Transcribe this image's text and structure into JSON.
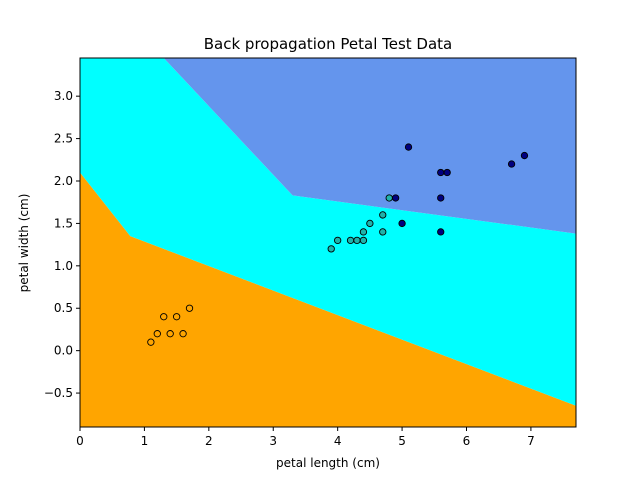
{
  "chart_data": {
    "type": "scatter",
    "title": "Back propagation Petal Test Data",
    "xlabel": "petal length (cm)",
    "ylabel": "petal width (cm)",
    "xlim": [
      0,
      7.7
    ],
    "ylim": [
      -0.9,
      3.45
    ],
    "xticks": [
      0,
      1,
      2,
      3,
      4,
      5,
      6,
      7
    ],
    "yticks": [
      -0.5,
      0.0,
      0.5,
      1.0,
      1.5,
      2.0,
      2.5,
      3.0
    ],
    "ytick_labels": [
      "−0.5",
      "0.0",
      "0.5",
      "1.0",
      "1.5",
      "2.0",
      "2.5",
      "3.0"
    ],
    "grid": false,
    "regions": [
      {
        "color": "#FFA500",
        "polygon": [
          [
            0,
            2.1
          ],
          [
            0.78,
            1.35
          ],
          [
            7.7,
            -0.65
          ],
          [
            7.7,
            -0.9
          ],
          [
            0,
            -0.9
          ]
        ]
      },
      {
        "color": "#00FFFF",
        "polygon": [
          [
            0,
            3.45
          ],
          [
            1.3,
            3.45
          ],
          [
            3.3,
            1.83
          ],
          [
            7.7,
            1.38
          ],
          [
            7.7,
            -0.65
          ],
          [
            0.78,
            1.35
          ],
          [
            0,
            2.1
          ]
        ]
      },
      {
        "color": "#6495ED",
        "polygon": [
          [
            1.3,
            3.45
          ],
          [
            7.7,
            3.45
          ],
          [
            7.7,
            1.38
          ],
          [
            3.3,
            1.83
          ]
        ]
      }
    ],
    "series": [
      {
        "color": "#FFA500",
        "points": [
          [
            1.1,
            0.1
          ],
          [
            1.2,
            0.2
          ],
          [
            1.3,
            0.4
          ],
          [
            1.4,
            0.2
          ],
          [
            1.5,
            0.4
          ],
          [
            1.6,
            0.2
          ],
          [
            1.7,
            0.5
          ]
        ]
      },
      {
        "color": "#20B2AA",
        "points": [
          [
            3.9,
            1.2
          ],
          [
            4.0,
            1.3
          ],
          [
            4.2,
            1.3
          ],
          [
            4.3,
            1.3
          ],
          [
            4.4,
            1.3
          ],
          [
            4.4,
            1.4
          ],
          [
            4.5,
            1.5
          ],
          [
            4.7,
            1.4
          ],
          [
            4.7,
            1.6
          ],
          [
            4.8,
            1.8
          ]
        ]
      },
      {
        "color": "#000080",
        "points": [
          [
            4.9,
            1.8
          ],
          [
            5.0,
            1.5
          ],
          [
            5.1,
            2.4
          ],
          [
            5.6,
            1.4
          ],
          [
            5.6,
            1.8
          ],
          [
            5.6,
            2.1
          ],
          [
            5.7,
            2.1
          ],
          [
            6.7,
            2.2
          ],
          [
            6.9,
            2.3
          ]
        ]
      }
    ]
  }
}
